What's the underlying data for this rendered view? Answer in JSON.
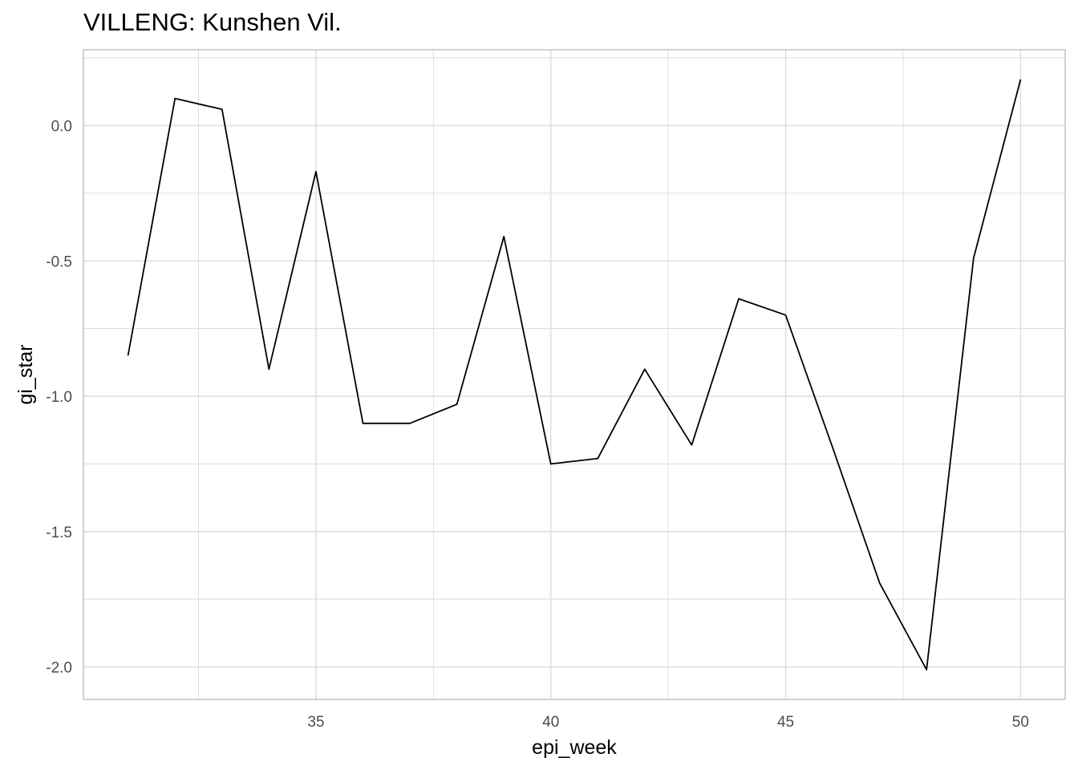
{
  "chart_data": {
    "type": "line",
    "title": "VILLENG: Kunshen Vil.",
    "xlabel": "epi_week",
    "ylabel": "gi_star",
    "x": [
      31,
      32,
      33,
      34,
      35,
      36,
      37,
      38,
      39,
      40,
      41,
      42,
      43,
      44,
      45,
      46,
      47,
      48,
      49,
      50
    ],
    "y": [
      -0.85,
      0.1,
      0.06,
      -0.9,
      -0.17,
      -1.1,
      -1.1,
      -1.03,
      -0.41,
      -1.25,
      -1.23,
      -0.9,
      -1.18,
      -0.64,
      -0.7,
      -1.19,
      -1.69,
      -2.01,
      -0.49,
      0.17
    ],
    "xlim": [
      30.05,
      50.95
    ],
    "ylim": [
      -2.12,
      0.28
    ],
    "x_ticks": [
      35,
      40,
      45,
      50
    ],
    "x_tick_labels": [
      "35",
      "40",
      "45",
      "50"
    ],
    "y_ticks": [
      0.0,
      -0.5,
      -1.0,
      -1.5,
      -2.0
    ],
    "y_tick_labels": [
      "0.0",
      "-0.5",
      "-1.0",
      "-1.5",
      "-2.0"
    ],
    "grid": true,
    "line_color": "#000000",
    "grid_color": "#dcdcdc",
    "panel_border_color": "#b3b3b3"
  }
}
